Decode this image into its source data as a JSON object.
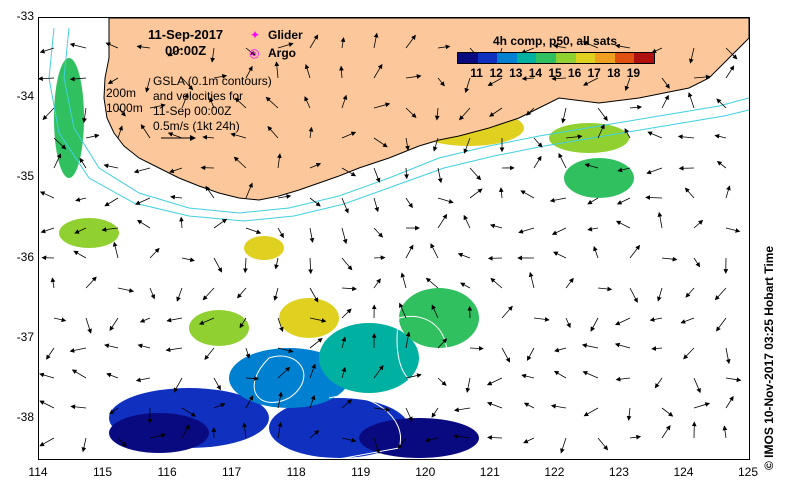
{
  "title": {
    "date": "11-Sep-2017",
    "time": "00:00Z"
  },
  "legend": {
    "glider": "Glider",
    "argo": "Argo",
    "glider_color": "#ff00ff",
    "argo_color": "#ff00ff"
  },
  "depth_labels": {
    "shallow": "200m",
    "deep": "1000m"
  },
  "gsla_text": [
    "GSLA (0.1m contours)",
    "and velocities for",
    "11-Sep 00:00Z",
    "0.5m/s (1kt 24h)"
  ],
  "colorbar": {
    "title": "4h comp, p50, all sats",
    "labels": [
      "11",
      "12",
      "13",
      "14",
      "15",
      "16",
      "17",
      "18",
      "19"
    ],
    "colors": [
      "#0a0a80",
      "#1030c0",
      "#0080d0",
      "#00b0a0",
      "#30c060",
      "#90d030",
      "#e0d020",
      "#f0a020",
      "#e05010",
      "#b01010"
    ]
  },
  "axes": {
    "x_ticks": [
      "114",
      "115",
      "116",
      "117",
      "118",
      "119",
      "120",
      "121",
      "122",
      "123",
      "124",
      "125"
    ],
    "y_ticks": [
      "-33",
      "-34",
      "-35",
      "-36",
      "-37",
      "-38"
    ],
    "xlim": [
      114,
      125
    ],
    "ylim": [
      -38.5,
      -33
    ]
  },
  "credit": "© IMOS 10-Nov-2017 03:25 Hobart Time",
  "colors": {
    "land": "#fcc89b",
    "isobath": "#40d0e0",
    "ocean": "#ffffff"
  }
}
